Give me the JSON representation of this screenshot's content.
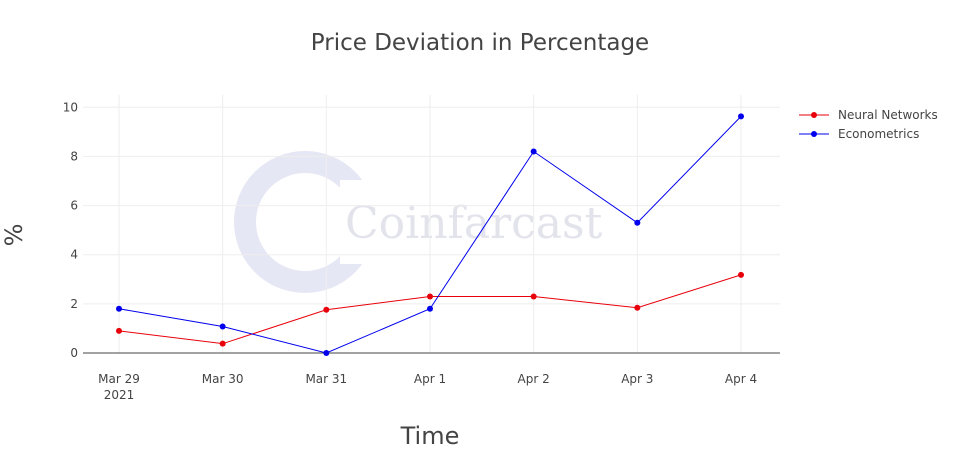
{
  "chart_data": {
    "type": "line",
    "title": "Price Deviation in Percentage",
    "xlabel": "Time",
    "ylabel": "%",
    "categories": [
      "Mar 29",
      "Mar 30",
      "Mar 31",
      "Apr 1",
      "Apr 2",
      "Apr 3",
      "Apr 4"
    ],
    "x_year_label": "2021",
    "ylim": [
      0,
      10.5
    ],
    "yticks": [
      0,
      2,
      4,
      6,
      8,
      10
    ],
    "grid": true,
    "legend_position": "top-right",
    "series": [
      {
        "name": "Neural Networks",
        "color": "#e8000b",
        "values": [
          0.9,
          0.38,
          1.76,
          2.3,
          2.3,
          1.84,
          3.18
        ]
      },
      {
        "name": "Econometrics",
        "color": "#0000ee",
        "values": [
          1.8,
          1.08,
          0.0,
          1.8,
          8.2,
          5.3,
          9.63
        ]
      }
    ]
  },
  "watermark": {
    "text": "Coinfarcast"
  }
}
